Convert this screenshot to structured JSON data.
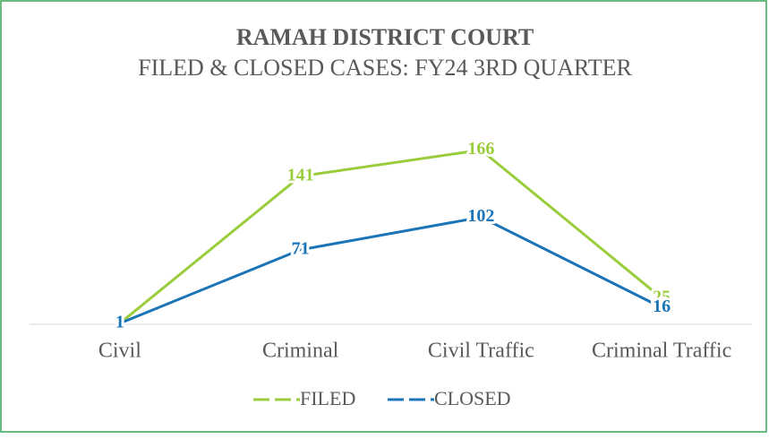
{
  "chart_data": {
    "type": "line",
    "title": "RAMAH DISTRICT COURT",
    "subtitle": "FILED & CLOSED CASES: FY24 3RD QUARTER",
    "categories": [
      "Civil",
      "Criminal",
      "Civil Traffic",
      "Criminal Traffic"
    ],
    "series": [
      {
        "name": "FILED",
        "color": "#9acd3c",
        "values": [
          1,
          141,
          166,
          25
        ]
      },
      {
        "name": "CLOSED",
        "color": "#1a74b8",
        "values": [
          1,
          71,
          102,
          16
        ]
      }
    ],
    "ylim": [
      0,
      180
    ],
    "legend": "bottom"
  }
}
